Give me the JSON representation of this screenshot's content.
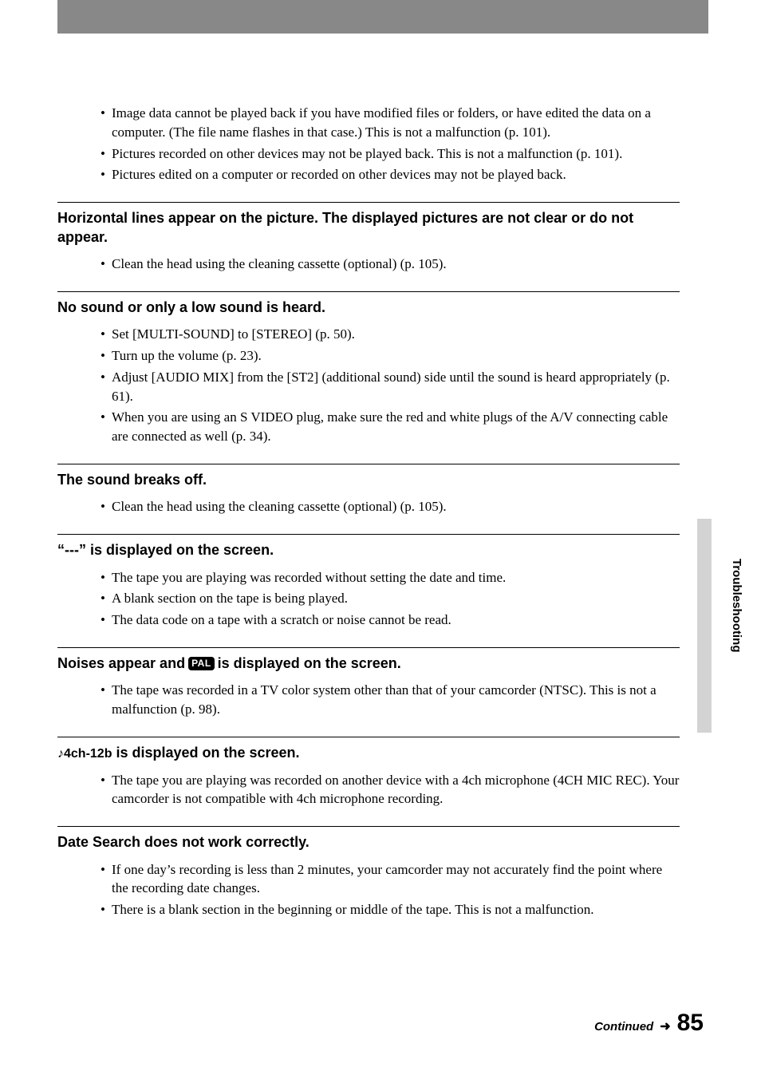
{
  "intro_bullets": [
    "Image data cannot be played back if you have modified files or folders, or have edited the data on a computer. (The file name flashes in that case.) This is not a malfunction (p. 101).",
    "Pictures recorded on other devices may not be played back. This is not a malfunction (p. 101).",
    "Pictures edited on a computer or recorded on other devices may not be played back."
  ],
  "sections": [
    {
      "heading": "Horizontal lines appear on the picture. The displayed pictures are not clear or do not appear.",
      "items": [
        "Clean the head using the cleaning cassette (optional) (p. 105)."
      ]
    },
    {
      "heading": "No sound or only a low sound is heard.",
      "items": [
        "Set [MULTI-SOUND] to [STEREO] (p. 50).",
        "Turn up the volume (p. 23).",
        "Adjust [AUDIO MIX] from the [ST2] (additional sound) side until the sound is heard appropriately (p. 61).",
        "When you are using an S VIDEO plug, make sure the red and white plugs of the A/V connecting cable are connected as well (p. 34)."
      ]
    },
    {
      "heading": "The sound breaks off.",
      "items": [
        "Clean the head using the cleaning cassette (optional) (p. 105)."
      ]
    },
    {
      "heading": "“---” is displayed on the screen.",
      "items": [
        "The tape you are playing was recorded without setting the date and time.",
        "A blank section on the tape is being played.",
        "The data code on a tape with a scratch or noise cannot be read."
      ]
    },
    {
      "heading_pre": "Noises appear and ",
      "pal": "PAL",
      "heading_post": " is displayed on the screen.",
      "items": [
        "The tape was recorded in a TV color system other than that of your camcorder (NTSC). This is not a malfunction (p. 98)."
      ]
    },
    {
      "ch_prefix": "♪4ch-12b",
      "heading_post": " is displayed on the screen.",
      "items": [
        "The tape you are playing was recorded on another device with a 4ch microphone (4CH MIC REC). Your camcorder is not compatible with 4ch microphone recording."
      ]
    },
    {
      "heading": "Date Search does not work correctly.",
      "items": [
        "If one day’s recording is less than 2 minutes, your camcorder may not accurately find the point where the recording date changes.",
        "There is a blank section in the beginning or middle of the tape. This is not a malfunction."
      ]
    }
  ],
  "side_label": "Troubleshooting",
  "continued": "Continued",
  "arrow": "➜",
  "page": "85"
}
